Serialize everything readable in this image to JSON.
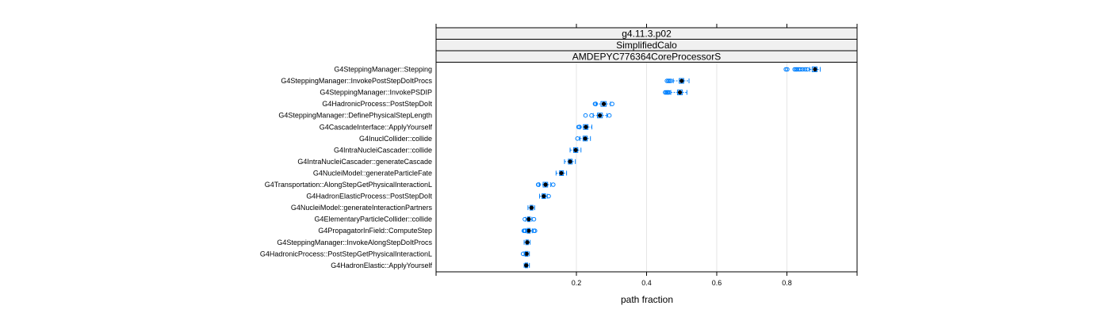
{
  "chart_data": {
    "type": "boxplot",
    "title": "",
    "xlabel": "path fraction",
    "ylabel": "",
    "strips": [
      "g4.11.3.p02",
      "SimplifiedCalo",
      "AMDEPYC776364CoreProcessorS"
    ],
    "xlim": [
      -0.2,
      1.0
    ],
    "xticks": [
      0.2,
      0.4,
      0.6,
      0.8
    ],
    "xtick_labels": [
      "0.2",
      "0.4",
      "0.6",
      "0.8"
    ],
    "grid": true,
    "colors": {
      "box": "#0080ff",
      "median": "#000000",
      "outlier": "#0080ff",
      "strip": "#f0f0f0",
      "grid": "#e6e6e6"
    },
    "categories": [
      "G4SteppingManager::Stepping",
      "G4SteppingManager::InvokePostStepDoItProcs",
      "G4SteppingManager::InvokePSDIP",
      "G4HadronicProcess::PostStepDoIt",
      "G4SteppingManager::DefinePhysicalStepLength",
      "G4CascadeInterface::ApplyYourself",
      "G4InuclCollider::collide",
      "G4IntraNucleiCascader::collide",
      "G4IntraNucleiCascader::generateCascade",
      "G4NucleiModel::generateParticleFate",
      "G4Transportation::AlongStepGetPhysicalInteractionL",
      "G4HadronElasticProcess::PostStepDoIt",
      "G4NucleiModel::generateInteractionPartners",
      "G4ElementaryParticleCollider::collide",
      "G4PropagatorInField::ComputeStep",
      "G4SteppingManager::InvokeAlongStepDoItProcs",
      "G4HadronicProcess::PostStepGetPhysicalInteractionL",
      "G4HadronElastic::ApplyYourself"
    ],
    "boxes": [
      {
        "whisker_low": 0.865,
        "q1": 0.872,
        "median": 0.88,
        "q3": 0.886,
        "whisker_high": 0.895,
        "outliers": [
          0.797,
          0.801,
          0.822,
          0.826,
          0.829,
          0.834,
          0.839,
          0.845,
          0.852,
          0.858
        ]
      },
      {
        "whisker_low": 0.476,
        "q1": 0.493,
        "median": 0.5,
        "q3": 0.506,
        "whisker_high": 0.521,
        "outliers": [
          0.458,
          0.462,
          0.465,
          0.469
        ]
      },
      {
        "whisker_low": 0.469,
        "q1": 0.488,
        "median": 0.495,
        "q3": 0.502,
        "whisker_high": 0.515,
        "outliers": [
          0.453,
          0.456,
          0.459,
          0.461,
          0.464
        ]
      },
      {
        "whisker_low": 0.256,
        "q1": 0.27,
        "median": 0.278,
        "q3": 0.285,
        "whisker_high": 0.297,
        "outliers": [
          0.253,
          0.255,
          0.302
        ]
      },
      {
        "whisker_low": 0.248,
        "q1": 0.26,
        "median": 0.267,
        "q3": 0.274,
        "whisker_high": 0.287,
        "outliers": [
          0.226,
          0.243,
          0.294
        ]
      },
      {
        "whisker_low": 0.21,
        "q1": 0.22,
        "median": 0.227,
        "q3": 0.233,
        "whisker_high": 0.244,
        "outliers": [
          0.206,
          0.209
        ]
      },
      {
        "whisker_low": 0.21,
        "q1": 0.219,
        "median": 0.225,
        "q3": 0.231,
        "whisker_high": 0.24,
        "outliers": [
          0.203
        ]
      },
      {
        "whisker_low": 0.182,
        "q1": 0.192,
        "median": 0.198,
        "q3": 0.204,
        "whisker_high": 0.213
      },
      {
        "whisker_low": 0.166,
        "q1": 0.177,
        "median": 0.182,
        "q3": 0.188,
        "whisker_high": 0.197
      },
      {
        "whisker_low": 0.142,
        "q1": 0.152,
        "median": 0.157,
        "q3": 0.163,
        "whisker_high": 0.172
      },
      {
        "whisker_low": 0.094,
        "q1": 0.105,
        "median": 0.112,
        "q3": 0.118,
        "whisker_high": 0.127,
        "outliers": [
          0.091,
          0.092,
          0.134
        ]
      },
      {
        "whisker_low": 0.095,
        "q1": 0.102,
        "median": 0.107,
        "q3": 0.112,
        "whisker_high": 0.117,
        "outliers": [
          0.121
        ]
      },
      {
        "whisker_low": 0.062,
        "q1": 0.068,
        "median": 0.072,
        "q3": 0.076,
        "whisker_high": 0.081
      },
      {
        "whisker_low": 0.056,
        "q1": 0.061,
        "median": 0.064,
        "q3": 0.068,
        "whisker_high": 0.073,
        "outliers": [
          0.053,
          0.079
        ]
      },
      {
        "whisker_low": 0.056,
        "q1": 0.06,
        "median": 0.064,
        "q3": 0.068,
        "whisker_high": 0.074,
        "outliers": [
          0.05,
          0.052,
          0.054,
          0.079,
          0.082
        ]
      },
      {
        "whisker_low": 0.051,
        "q1": 0.056,
        "median": 0.06,
        "q3": 0.063,
        "whisker_high": 0.068
      },
      {
        "whisker_low": 0.051,
        "q1": 0.054,
        "median": 0.058,
        "q3": 0.062,
        "whisker_high": 0.066,
        "outliers": [
          0.048
        ]
      },
      {
        "whisker_low": 0.051,
        "q1": 0.054,
        "median": 0.057,
        "q3": 0.061,
        "whisker_high": 0.066
      }
    ]
  }
}
